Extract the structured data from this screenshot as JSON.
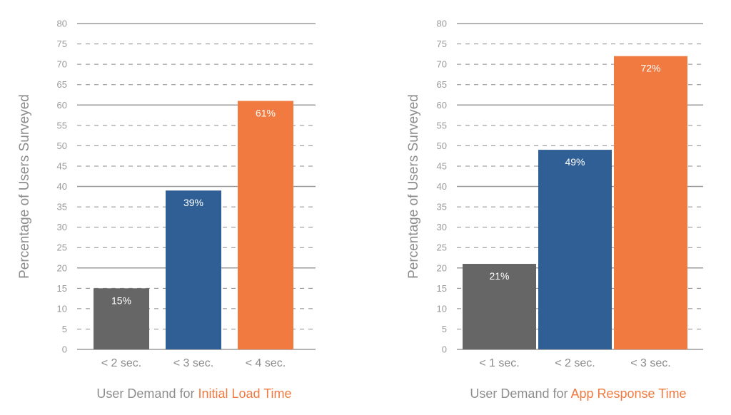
{
  "colors": {
    "gray": "#666666",
    "blue": "#2f5f95",
    "orange": "#f07a3f",
    "axis_text": "#9a9a9a",
    "title_text": "#8d8d8d",
    "highlight": "#f07a3f",
    "grid_solid": "#9b9b9b",
    "grid_dashed": "#8c8c8c"
  },
  "chart_data": [
    {
      "type": "bar",
      "categories": [
        "< 2 sec.",
        "< 3 sec.",
        "< 4 sec."
      ],
      "values": [
        15,
        39,
        61
      ],
      "data_labels": [
        "15%",
        "39%",
        "61%"
      ],
      "bar_colors": [
        "gray",
        "blue",
        "orange"
      ],
      "ylabel": "Percentage of Users Surveyed",
      "xlabel_prefix": "User Demand for ",
      "xlabel_highlight": "Initial Load Time",
      "ylim": [
        0,
        80
      ],
      "yticks": [
        0,
        5,
        10,
        15,
        20,
        25,
        30,
        35,
        40,
        45,
        50,
        55,
        60,
        65,
        70,
        75,
        80
      ],
      "grid": true,
      "legend": "none"
    },
    {
      "type": "bar",
      "categories": [
        "< 1 sec.",
        "< 2 sec.",
        "< 3 sec."
      ],
      "values": [
        21,
        49,
        72
      ],
      "data_labels": [
        "21%",
        "49%",
        "72%"
      ],
      "bar_colors": [
        "gray",
        "blue",
        "orange"
      ],
      "ylabel": "Percentage of Users Surveyed",
      "xlabel_prefix": "User Demand for ",
      "xlabel_highlight": "App Response Time",
      "ylim": [
        0,
        80
      ],
      "yticks": [
        0,
        5,
        10,
        15,
        20,
        25,
        30,
        35,
        40,
        45,
        50,
        55,
        60,
        65,
        70,
        75,
        80
      ],
      "grid": true,
      "legend": "none"
    }
  ]
}
